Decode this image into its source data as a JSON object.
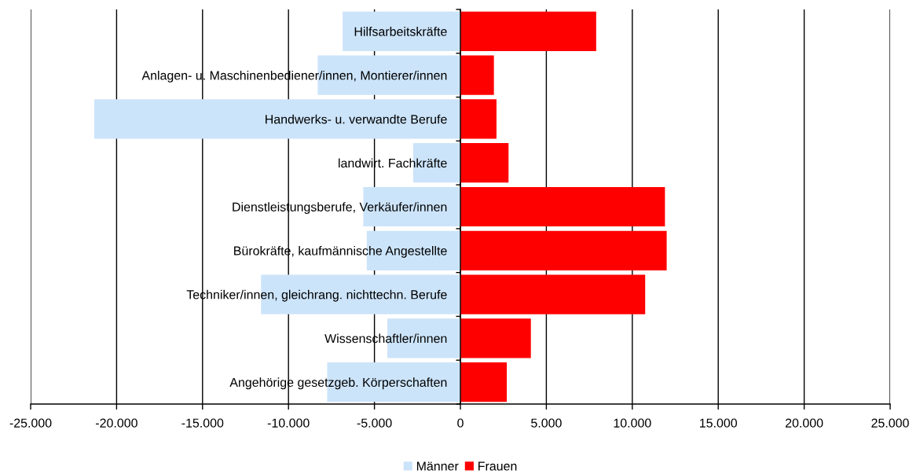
{
  "chart_data": {
    "type": "bar",
    "orientation": "horizontal",
    "stacked": true,
    "categories": [
      "Hilfsarbeitskräfte",
      "Anlagen- u. Maschinenbediener/innen, Montierer/innen",
      "Handwerks- u. verwandte Berufe",
      "landwirt. Fachkräfte",
      "Dienstleistungsberufe, Verkäufer/innen",
      "Bürokräfte, kaufmännische Angestellte",
      "Techniker/innen, gleichrang. nichttechn. Berufe",
      "Wissenschaftler/innen",
      "Angehörige gesetzgeb. Körperschaften"
    ],
    "series": [
      {
        "name": "Männer",
        "color": "#cce4fa",
        "values": [
          -6850,
          -8300,
          -21300,
          -2750,
          -5650,
          -5450,
          -11600,
          -4250,
          -7750
        ]
      },
      {
        "name": "Frauen",
        "color": "#ff0000",
        "values": [
          7900,
          1950,
          2100,
          2800,
          11900,
          12000,
          10750,
          4100,
          2700
        ]
      }
    ],
    "xlim": [
      -25000,
      25000
    ],
    "xticks": [
      {
        "value": -25000,
        "label": "-25.000"
      },
      {
        "value": -20000,
        "label": "-20.000"
      },
      {
        "value": -15000,
        "label": "-15.000"
      },
      {
        "value": -10000,
        "label": "-10.000"
      },
      {
        "value": -5000,
        "label": "-5.000"
      },
      0,
      {
        "value": 5000,
        "label": "5.000"
      },
      {
        "value": 10000,
        "label": "10.000"
      },
      {
        "value": 15000,
        "label": "15.000"
      },
      {
        "value": 20000,
        "label": "20.000"
      },
      {
        "value": 25000,
        "label": "25.000"
      }
    ],
    "grid": "x",
    "legend": "bottom"
  }
}
